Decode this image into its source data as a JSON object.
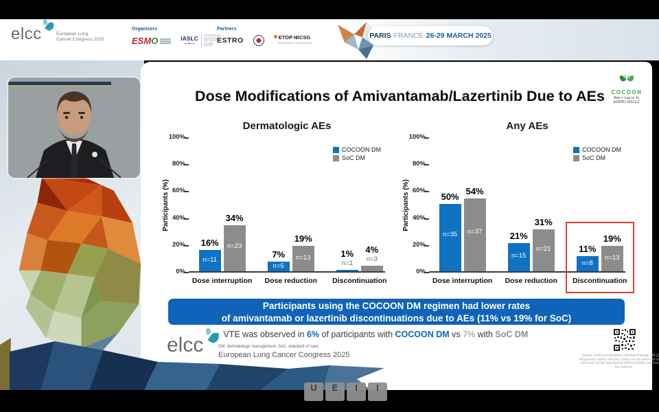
{
  "player": {
    "keys": [
      "U",
      "E",
      "I",
      "I"
    ]
  },
  "header": {
    "elcc": {
      "name": "elcc",
      "tagline_line1": "European Lung",
      "tagline_line2": "Cancer Congress 2025"
    },
    "organisers_label": "Organisers",
    "partners_label": "Partners",
    "organisers": [
      {
        "name_red": "ESM",
        "name_green": "O"
      },
      {
        "name": "IASLC",
        "plus": "—+—",
        "sub": "INTERNATIONAL ASSOCIATION FOR THE STUDY OF LUNG CANCER"
      }
    ],
    "partners": [
      {
        "name": "ESTRO"
      },
      {
        "name": "ETOP-IBCSG",
        "sub": "PARTNERS FOUNDATION"
      }
    ],
    "event": {
      "city": "PARIS",
      "country": "FRANCE",
      "dates": "26-29 MARCH 2025"
    }
  },
  "slide": {
    "title": "Dose Modifications of Amivantamab/Lazertinib Due to AEs",
    "cocoon_badge": {
      "name": "COCOON",
      "line1": "Ami + Laz in 1L",
      "line2": "EGFR+ NSCLC"
    },
    "banner": {
      "line1": "Participants using the COCOON DM regimen had lower rates",
      "line2": "of amivantamab or lazertinib discontinuations due to AEs (11% vs 19% for SoC)"
    },
    "bullet_marker": "•",
    "bullet_segments": [
      {
        "text": "VTE was observed in ",
        "style": "plain"
      },
      {
        "text": "6%",
        "style": "blue-bold"
      },
      {
        "text": " of participants with ",
        "style": "plain"
      },
      {
        "text": "COCOON DM",
        "style": "blue-bold"
      },
      {
        "text": " vs ",
        "style": "plain"
      },
      {
        "text": "7%",
        "style": "gray"
      },
      {
        "text": " with ",
        "style": "plain"
      },
      {
        "text": "SoC DM",
        "style": "gray-bold"
      }
    ],
    "footnote": "DM, dermatologic management; SoC, standard of care.",
    "congress": "European Lung Cancer Congress 2025",
    "qr_disclaimer": "Copies of this presentation obtained through QR (Quick Response) and/or text key codes are for personal use only and may not be reproduced without written permission of the authors.",
    "colors": {
      "cocoon_blue": "#0f72c2",
      "soc_gray": "#8c8c8c",
      "banner_blue": "#0f63b8",
      "highlight_red": "#d9412c"
    }
  },
  "chart_data": [
    {
      "type": "bar",
      "title": "Dermatologic AEs",
      "xlabel": "",
      "ylabel": "Participants (%)",
      "ylim": [
        0,
        100
      ],
      "yticks": [
        0,
        20,
        40,
        60,
        80,
        100
      ],
      "grid": false,
      "legend_position": "top-right",
      "categories": [
        "Dose interruption",
        "Dose reduction",
        "Discontinuation"
      ],
      "series": [
        {
          "name": "COCOON DM",
          "color": "#0f72c2",
          "values": [
            16,
            7,
            1
          ],
          "n": [
            11,
            5,
            1
          ]
        },
        {
          "name": "SoC DM",
          "color": "#8c8c8c",
          "values": [
            34,
            19,
            4
          ],
          "n": [
            23,
            13,
            3
          ]
        }
      ]
    },
    {
      "type": "bar",
      "title": "Any AEs",
      "xlabel": "",
      "ylabel": "Participants (%)",
      "ylim": [
        0,
        100
      ],
      "yticks": [
        0,
        20,
        40,
        60,
        80,
        100
      ],
      "grid": false,
      "legend_position": "top-right",
      "categories": [
        "Dose interruption",
        "Dose reduction",
        "Discontinuation"
      ],
      "series": [
        {
          "name": "COCOON DM",
          "color": "#0f72c2",
          "values": [
            50,
            21,
            11
          ],
          "n": [
            35,
            15,
            8
          ]
        },
        {
          "name": "SoC DM",
          "color": "#8c8c8c",
          "values": [
            54,
            31,
            19
          ],
          "n": [
            37,
            21,
            13
          ]
        }
      ],
      "highlight": {
        "category_index": 2,
        "top_value": 38,
        "color": "#d9412c"
      }
    }
  ]
}
